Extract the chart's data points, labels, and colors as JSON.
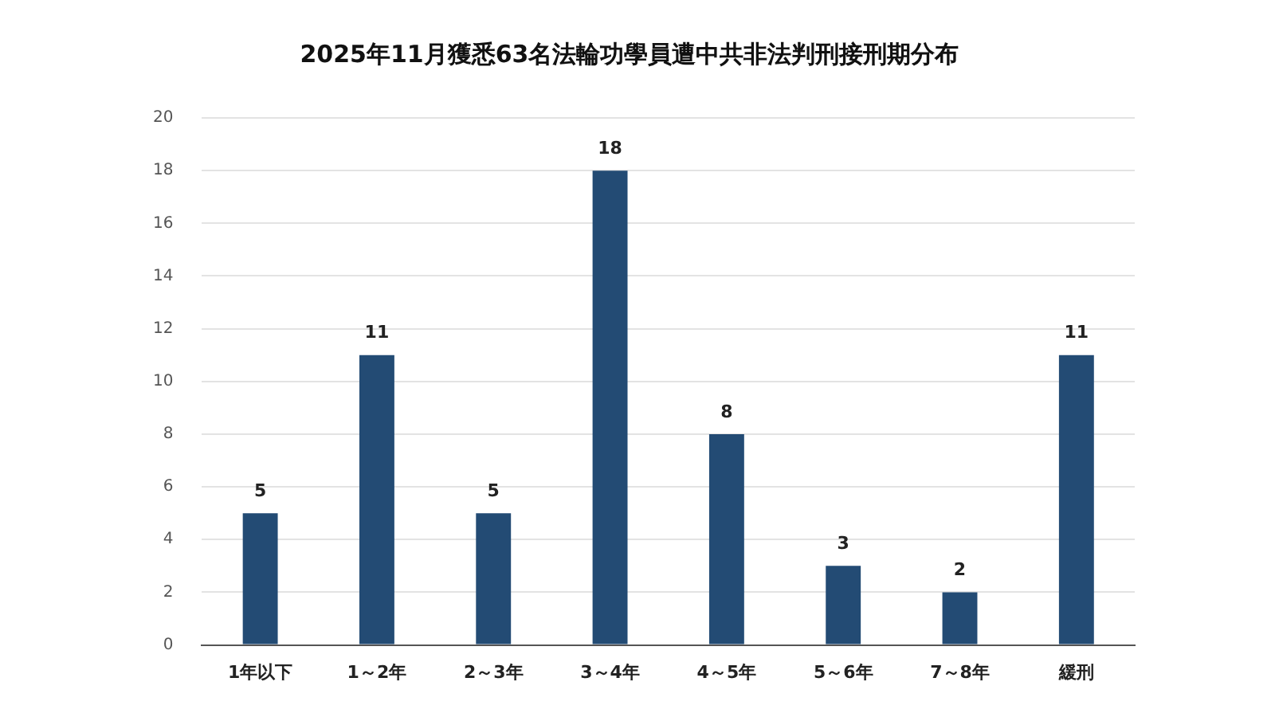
{
  "chart_data": {
    "type": "bar",
    "title": "2025年11月獲悉63名法輪功學員遭中共非法判刑接刑期分布",
    "categories": [
      "1年以下",
      "1～2年",
      "2～3年",
      "3～4年",
      "4～5年",
      "5～6年",
      "7～8年",
      "緩刑"
    ],
    "values": [
      5,
      11,
      5,
      18,
      8,
      3,
      2,
      11
    ],
    "color": "#234b74",
    "ylim": [
      0,
      20
    ],
    "yticks": [
      0,
      2,
      4,
      6,
      8,
      10,
      12,
      14,
      16,
      18,
      20
    ],
    "grid": "y",
    "data_labels": true,
    "legend": false
  }
}
